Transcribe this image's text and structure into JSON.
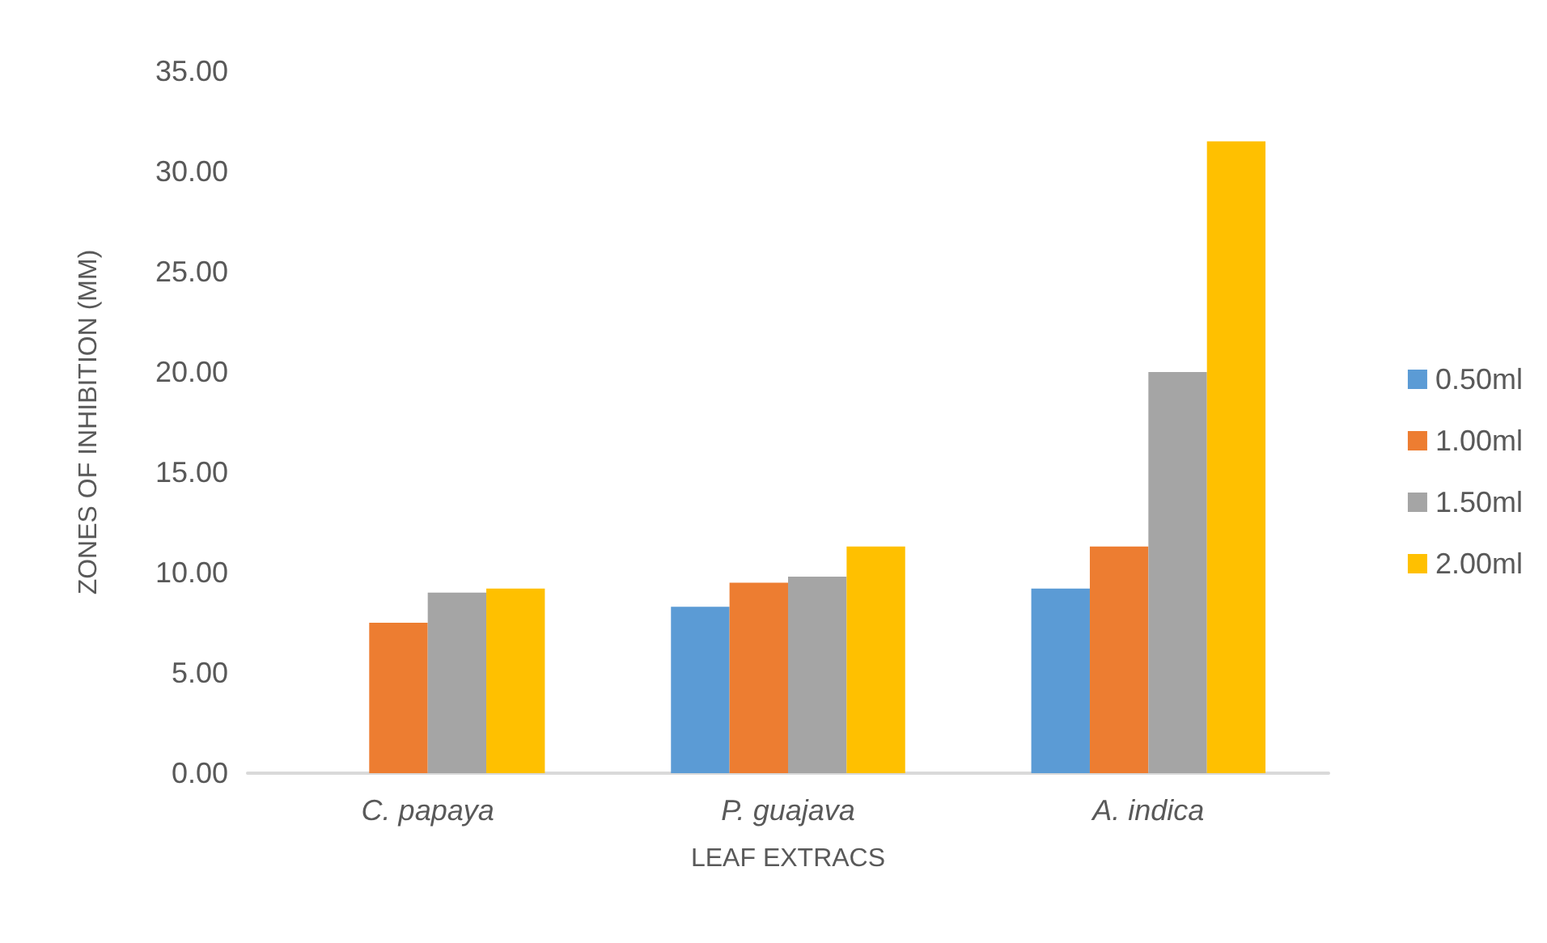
{
  "chart_data": {
    "type": "bar",
    "xlabel": "LEAF EXTRACS",
    "ylabel": "ZONES OF INHIBITION (MM)",
    "categories": [
      "C. papaya",
      "P. guajava",
      "A. indica"
    ],
    "series": [
      {
        "name": "0.50ml",
        "color": "#5b9bd5",
        "values": [
          0,
          8.3,
          9.2
        ]
      },
      {
        "name": "1.00ml",
        "color": "#ed7d31",
        "values": [
          7.5,
          9.5,
          11.3
        ]
      },
      {
        "name": "1.50ml",
        "color": "#a5a5a5",
        "values": [
          9.0,
          9.8,
          20.0
        ]
      },
      {
        "name": "2.00ml",
        "color": "#ffc000",
        "values": [
          9.2,
          11.3,
          31.5
        ]
      }
    ],
    "ylim": [
      0,
      35
    ],
    "yticks": [
      {
        "value": 0,
        "label": "0.00"
      },
      {
        "value": 5,
        "label": "5.00"
      },
      {
        "value": 10,
        "label": "10.00"
      },
      {
        "value": 15,
        "label": "15.00"
      },
      {
        "value": 20,
        "label": "20.00"
      },
      {
        "value": 25,
        "label": "25.00"
      },
      {
        "value": 30,
        "label": "30.00"
      },
      {
        "value": 35,
        "label": "35.00"
      }
    ],
    "grid": false,
    "legend": "right"
  }
}
